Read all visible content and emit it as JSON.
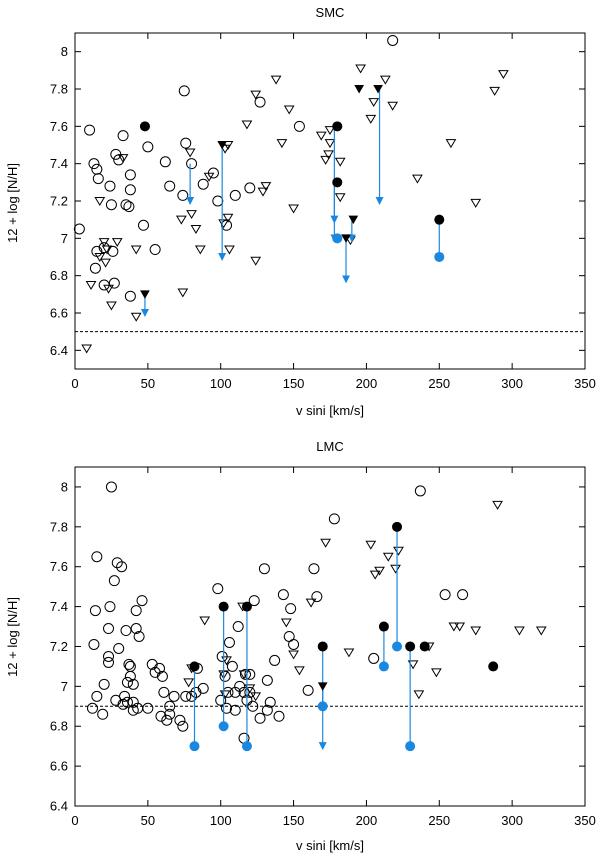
{
  "colors": {
    "frame": "#000000",
    "arrow": "#1a88e0",
    "blue_marker": "#1a88e0",
    "marker": "#000000",
    "threshold": "#000000"
  },
  "chart_data": [
    {
      "type": "scatter",
      "title": "SMC",
      "xlabel": "v sini [km/s]",
      "ylabel": "12 + log [N/H]",
      "xlim": [
        0,
        350
      ],
      "ylim": [
        6.3,
        8.1
      ],
      "xticks": [
        0,
        50,
        100,
        150,
        200,
        250,
        300,
        350
      ],
      "yticks": [
        6.4,
        6.6,
        6.8,
        7,
        7.2,
        7.4,
        7.6,
        7.8,
        8
      ],
      "ytick_labels": [
        "6.4",
        "6.6",
        "6.8",
        "7",
        "7.2",
        "7.4",
        "7.6",
        "7.8",
        "8"
      ],
      "threshold": 6.5,
      "open_circles": [
        [
          3,
          7.05
        ],
        [
          10,
          7.58
        ],
        [
          13,
          7.4
        ],
        [
          14,
          6.84
        ],
        [
          15,
          7.37
        ],
        [
          15,
          6.93
        ],
        [
          16,
          7.32
        ],
        [
          20,
          6.95
        ],
        [
          20,
          6.75
        ],
        [
          24,
          7.28
        ],
        [
          25,
          7.18
        ],
        [
          26,
          6.93
        ],
        [
          27,
          6.76
        ],
        [
          28,
          7.45
        ],
        [
          30,
          7.42
        ],
        [
          33,
          7.55
        ],
        [
          35,
          7.18
        ],
        [
          37,
          7.17
        ],
        [
          38,
          7.34
        ],
        [
          38,
          7.26
        ],
        [
          38,
          6.69
        ],
        [
          47,
          7.07
        ],
        [
          50,
          7.49
        ],
        [
          55,
          6.94
        ],
        [
          62,
          7.41
        ],
        [
          65,
          7.28
        ],
        [
          74,
          7.23
        ],
        [
          75,
          7.79
        ],
        [
          76,
          7.51
        ],
        [
          80,
          7.4
        ],
        [
          88,
          7.29
        ],
        [
          95,
          7.35
        ],
        [
          98,
          7.2
        ],
        [
          104,
          7.07
        ],
        [
          110,
          7.23
        ],
        [
          120,
          7.27
        ],
        [
          127,
          7.73
        ],
        [
          154,
          7.6
        ],
        [
          218,
          8.06
        ]
      ],
      "open_triangles": [
        [
          8,
          6.41
        ],
        [
          11,
          6.75
        ],
        [
          17,
          6.9
        ],
        [
          17,
          7.2
        ],
        [
          20,
          6.98
        ],
        [
          21,
          6.87
        ],
        [
          22,
          6.94
        ],
        [
          23,
          6.73
        ],
        [
          25,
          6.64
        ],
        [
          29,
          6.98
        ],
        [
          33,
          7.43
        ],
        [
          42,
          6.94
        ],
        [
          42,
          6.58
        ],
        [
          73,
          7.1
        ],
        [
          74,
          6.71
        ],
        [
          79,
          7.46
        ],
        [
          80,
          7.13
        ],
        [
          83,
          7.05
        ],
        [
          86,
          6.94
        ],
        [
          92,
          7.33
        ],
        [
          102,
          7.08
        ],
        [
          103,
          7.48
        ],
        [
          105,
          7.5
        ],
        [
          105,
          7.11
        ],
        [
          106,
          6.94
        ],
        [
          118,
          7.61
        ],
        [
          124,
          7.77
        ],
        [
          124,
          6.88
        ],
        [
          129,
          7.25
        ],
        [
          131,
          7.28
        ],
        [
          138,
          7.85
        ],
        [
          142,
          7.51
        ],
        [
          147,
          7.69
        ],
        [
          150,
          7.16
        ],
        [
          169,
          7.55
        ],
        [
          172,
          7.42
        ],
        [
          174,
          7.45
        ],
        [
          175,
          7.58
        ],
        [
          175,
          7.51
        ],
        [
          182,
          7.41
        ],
        [
          182,
          7.22
        ],
        [
          189,
          6.99
        ],
        [
          196,
          7.91
        ],
        [
          203,
          7.64
        ],
        [
          205,
          7.73
        ],
        [
          213,
          7.85
        ],
        [
          218,
          7.71
        ],
        [
          235,
          7.32
        ],
        [
          258,
          7.51
        ],
        [
          275,
          7.19
        ],
        [
          288,
          7.79
        ],
        [
          294,
          7.88
        ]
      ],
      "filled_triangles": [
        [
          48,
          6.7
        ],
        [
          101,
          7.5
        ],
        [
          186,
          7.0
        ],
        [
          191,
          7.1
        ],
        [
          195,
          7.8
        ],
        [
          208,
          7.8
        ]
      ],
      "filled_circles": [
        [
          48,
          7.6
        ],
        [
          180,
          7.6
        ],
        [
          180,
          7.3
        ],
        [
          250,
          7.1
        ]
      ],
      "blue_circles": [
        [
          180,
          7.0
        ],
        [
          250,
          6.9
        ]
      ],
      "arrows": [
        [
          48,
          6.7,
          6.6
        ],
        [
          79,
          7.4,
          7.2
        ],
        [
          101,
          7.5,
          6.9
        ],
        [
          178,
          7.3,
          7.1
        ],
        [
          178,
          7.6,
          7.0
        ],
        [
          186,
          7.0,
          6.78
        ],
        [
          190,
          7.1,
          7.0
        ],
        [
          209,
          7.8,
          7.2
        ],
        [
          250,
          7.1,
          6.9
        ]
      ]
    },
    {
      "type": "scatter",
      "title": "LMC",
      "xlabel": "v sini [km/s]",
      "ylabel": "12 + log [N/H]",
      "xlim": [
        0,
        350
      ],
      "ylim": [
        6.4,
        8.1
      ],
      "xticks": [
        0,
        50,
        100,
        150,
        200,
        250,
        300,
        350
      ],
      "yticks": [
        6.4,
        6.6,
        6.8,
        7,
        7.2,
        7.4,
        7.6,
        7.8,
        8
      ],
      "ytick_labels": [
        "6.4",
        "6.6",
        "6.8",
        "7",
        "7.2",
        "7.4",
        "7.6",
        "7.8",
        "8"
      ],
      "threshold": 6.9,
      "open_circles": [
        [
          12,
          6.89
        ],
        [
          13,
          7.21
        ],
        [
          14,
          7.38
        ],
        [
          15,
          7.65
        ],
        [
          15,
          6.95
        ],
        [
          19,
          6.86
        ],
        [
          20,
          7.01
        ],
        [
          23,
          7.15
        ],
        [
          23,
          7.12
        ],
        [
          23,
          7.29
        ],
        [
          24,
          7.4
        ],
        [
          25,
          8.0
        ],
        [
          27,
          7.53
        ],
        [
          28,
          6.93
        ],
        [
          29,
          7.62
        ],
        [
          30,
          7.19
        ],
        [
          32,
          7.6
        ],
        [
          33,
          6.91
        ],
        [
          34,
          6.95
        ],
        [
          35,
          7.28
        ],
        [
          36,
          7.02
        ],
        [
          36,
          6.92
        ],
        [
          37,
          7.11
        ],
        [
          38,
          7.05
        ],
        [
          38,
          7.1
        ],
        [
          40,
          7.01
        ],
        [
          40,
          6.92
        ],
        [
          40,
          6.88
        ],
        [
          42,
          7.38
        ],
        [
          42,
          7.29
        ],
        [
          43,
          6.89
        ],
        [
          44,
          7.25
        ],
        [
          46,
          7.43
        ],
        [
          50,
          6.89
        ],
        [
          53,
          7.11
        ],
        [
          55,
          7.07
        ],
        [
          58,
          7.09
        ],
        [
          59,
          6.85
        ],
        [
          60,
          7.05
        ],
        [
          61,
          6.97
        ],
        [
          63,
          6.83
        ],
        [
          65,
          6.86
        ],
        [
          65,
          6.9
        ],
        [
          68,
          6.95
        ],
        [
          72,
          6.83
        ],
        [
          74,
          6.8
        ],
        [
          76,
          6.95
        ],
        [
          80,
          6.95
        ],
        [
          83,
          6.97
        ],
        [
          84,
          7.09
        ],
        [
          88,
          6.99
        ],
        [
          98,
          7.49
        ],
        [
          100,
          6.93
        ],
        [
          101,
          7.15
        ],
        [
          103,
          7.05
        ],
        [
          104,
          6.89
        ],
        [
          105,
          6.97
        ],
        [
          106,
          7.22
        ],
        [
          108,
          7.1
        ],
        [
          110,
          6.88
        ],
        [
          110,
          6.97
        ],
        [
          112,
          7.3
        ],
        [
          113,
          7.0
        ],
        [
          116,
          6.74
        ],
        [
          116,
          6.97
        ],
        [
          117,
          7.06
        ],
        [
          118,
          6.93
        ],
        [
          120,
          6.97
        ],
        [
          120,
          7.06
        ],
        [
          122,
          6.9
        ],
        [
          123,
          7.43
        ],
        [
          127,
          6.84
        ],
        [
          130,
          7.59
        ],
        [
          132,
          7.03
        ],
        [
          132,
          6.88
        ],
        [
          134,
          6.92
        ],
        [
          137,
          7.13
        ],
        [
          140,
          6.85
        ],
        [
          143,
          7.46
        ],
        [
          147,
          7.25
        ],
        [
          148,
          7.39
        ],
        [
          150,
          7.21
        ],
        [
          160,
          6.98
        ],
        [
          164,
          7.59
        ],
        [
          166,
          7.45
        ],
        [
          178,
          7.84
        ],
        [
          205,
          7.14
        ],
        [
          237,
          7.98
        ],
        [
          254,
          7.46
        ],
        [
          266,
          7.46
        ]
      ],
      "open_triangles": [
        [
          78,
          7.02
        ],
        [
          80,
          7.09
        ],
        [
          89,
          7.33
        ],
        [
          102,
          7.06
        ],
        [
          103,
          6.96
        ],
        [
          104,
          7.13
        ],
        [
          115,
          7.4
        ],
        [
          116,
          7.06
        ],
        [
          120,
          6.99
        ],
        [
          124,
          6.95
        ],
        [
          145,
          7.32
        ],
        [
          150,
          7.16
        ],
        [
          154,
          7.08
        ],
        [
          162,
          7.42
        ],
        [
          172,
          7.72
        ],
        [
          188,
          7.17
        ],
        [
          203,
          7.71
        ],
        [
          206,
          7.56
        ],
        [
          209,
          7.58
        ],
        [
          215,
          7.65
        ],
        [
          220,
          7.59
        ],
        [
          222,
          7.68
        ],
        [
          232,
          7.11
        ],
        [
          236,
          6.96
        ],
        [
          243,
          7.2
        ],
        [
          248,
          7.07
        ],
        [
          260,
          7.3
        ],
        [
          264,
          7.3
        ],
        [
          275,
          7.28
        ],
        [
          290,
          7.91
        ],
        [
          305,
          7.28
        ],
        [
          320,
          7.28
        ]
      ],
      "filled_triangles": [
        [
          170,
          7.0
        ]
      ],
      "filled_circles": [
        [
          82,
          7.1
        ],
        [
          102,
          7.4
        ],
        [
          118,
          7.4
        ],
        [
          170,
          7.2
        ],
        [
          212,
          7.3
        ],
        [
          221,
          7.8
        ],
        [
          230,
          7.2
        ],
        [
          240,
          7.2
        ],
        [
          287,
          7.1
        ]
      ],
      "blue_circles": [
        [
          82,
          6.7
        ],
        [
          102,
          6.8
        ],
        [
          118,
          6.7
        ],
        [
          170,
          6.9
        ],
        [
          212,
          7.1
        ],
        [
          221,
          7.2
        ],
        [
          230,
          6.7
        ]
      ],
      "arrows": [
        [
          170,
          7.0,
          6.7
        ]
      ],
      "segments": [
        [
          82,
          7.1,
          6.7
        ],
        [
          102,
          7.4,
          6.8
        ],
        [
          118,
          7.4,
          6.7
        ],
        [
          170,
          7.2,
          6.9
        ],
        [
          212,
          7.3,
          7.1
        ],
        [
          221,
          7.8,
          7.2
        ],
        [
          230,
          7.2,
          6.7
        ]
      ]
    }
  ]
}
